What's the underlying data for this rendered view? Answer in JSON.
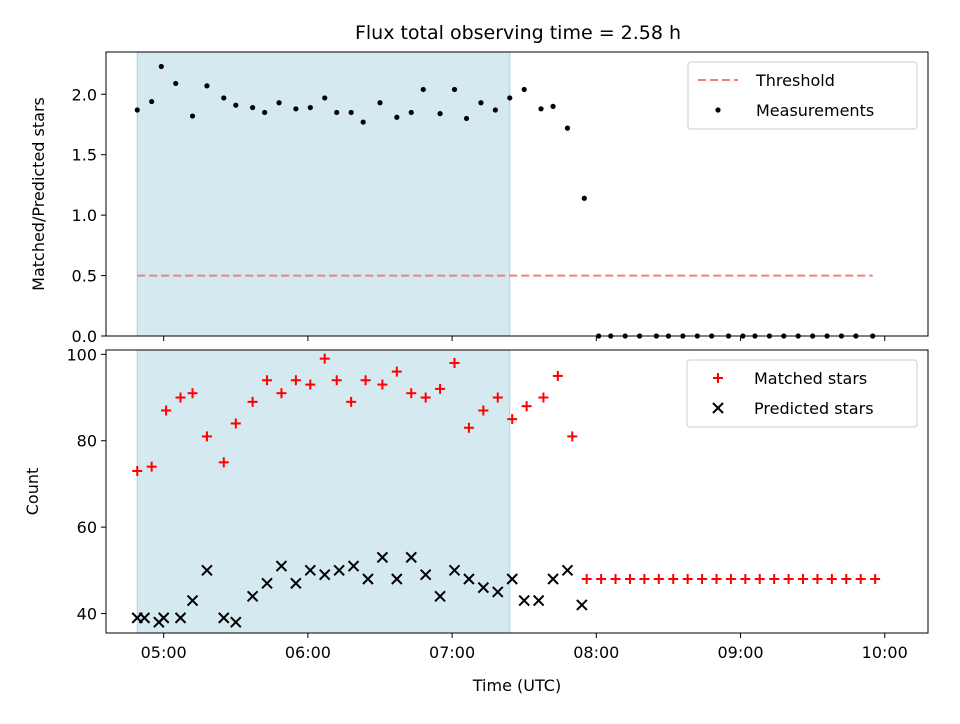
{
  "chart_data": [
    {
      "type": "scatter",
      "title": "Flux total observing time = 2.58 h",
      "xlabel": "",
      "ylabel": "Matched/Predicted stars",
      "xlim": [
        "04:36",
        "10:18"
      ],
      "ylim": [
        0,
        2.35
      ],
      "yticks": [
        0.0,
        0.5,
        1.0,
        1.5,
        2.0
      ],
      "ytick_labels": [
        "0.0",
        "0.5",
        "1.0",
        "1.5",
        "2.0"
      ],
      "shaded_region": {
        "x0": "04:49",
        "x1": "07:24",
        "color": "#d4eaf0"
      },
      "legend": {
        "position": "top-right",
        "entries": [
          "Threshold",
          "Measurements"
        ]
      },
      "series": [
        {
          "name": "Threshold",
          "style": "dashed-line",
          "color": "#f08080",
          "x": [
            "04:49",
            "09:55"
          ],
          "y": [
            0.5,
            0.5
          ]
        },
        {
          "name": "Measurements",
          "style": "dot",
          "color": "#000000",
          "x": [
            "04:49",
            "04:55",
            "04:59",
            "05:05",
            "05:12",
            "05:18",
            "05:25",
            "05:30",
            "05:37",
            "05:42",
            "05:48",
            "05:55",
            "06:01",
            "06:07",
            "06:12",
            "06:18",
            "06:23",
            "06:30",
            "06:37",
            "06:43",
            "06:48",
            "06:55",
            "07:01",
            "07:06",
            "07:12",
            "07:18",
            "07:24",
            "07:30",
            "07:37",
            "07:42",
            "07:48",
            "07:55",
            "08:01",
            "08:06",
            "08:12",
            "08:18",
            "08:25",
            "08:30",
            "08:36",
            "08:42",
            "08:48",
            "08:55",
            "09:01",
            "09:06",
            "09:12",
            "09:18",
            "09:24",
            "09:30",
            "09:36",
            "09:42",
            "09:48",
            "09:55"
          ],
          "y": [
            1.87,
            1.94,
            2.23,
            2.09,
            1.82,
            2.07,
            1.97,
            1.91,
            1.89,
            1.85,
            1.93,
            1.88,
            1.89,
            1.97,
            1.85,
            1.85,
            1.77,
            1.93,
            1.81,
            1.85,
            2.04,
            1.84,
            2.04,
            1.8,
            1.93,
            1.87,
            1.97,
            2.04,
            1.88,
            1.9,
            1.72,
            1.14,
            0,
            0,
            0,
            0,
            0,
            0,
            0,
            0,
            0,
            0,
            0,
            0,
            0,
            0,
            0,
            0,
            0,
            0,
            0,
            0
          ]
        }
      ]
    },
    {
      "type": "scatter",
      "title": "",
      "xlabel": "Time (UTC)",
      "ylabel": "Count",
      "xlim": [
        "04:36",
        "10:18"
      ],
      "ylim": [
        35.5,
        101
      ],
      "xticks": [
        "05:00",
        "06:00",
        "07:00",
        "08:00",
        "09:00",
        "10:00"
      ],
      "yticks": [
        40,
        60,
        80,
        100
      ],
      "ytick_labels": [
        "40",
        "60",
        "80",
        "100"
      ],
      "shaded_region": {
        "x0": "04:49",
        "x1": "07:24",
        "color": "#d4eaf0"
      },
      "legend": {
        "position": "top-right",
        "entries": [
          "Matched stars",
          "Predicted stars"
        ]
      },
      "series": [
        {
          "name": "Matched stars",
          "style": "plus",
          "color": "#ff0000",
          "x": [
            "04:49",
            "04:55",
            "05:01",
            "05:07",
            "05:12",
            "05:18",
            "05:25",
            "05:30",
            "05:37",
            "05:43",
            "05:49",
            "05:55",
            "06:01",
            "06:07",
            "06:12",
            "06:18",
            "06:24",
            "06:31",
            "06:37",
            "06:43",
            "06:49",
            "06:55",
            "07:01",
            "07:07",
            "07:13",
            "07:19",
            "07:25",
            "07:31",
            "07:38",
            "07:44",
            "07:50",
            "07:56",
            "08:02",
            "08:08",
            "08:14",
            "08:20",
            "08:26",
            "08:32",
            "08:38",
            "08:44",
            "08:50",
            "08:56",
            "09:02",
            "09:08",
            "09:14",
            "09:20",
            "09:26",
            "09:32",
            "09:38",
            "09:44",
            "09:50",
            "09:56"
          ],
          "y": [
            73,
            74,
            87,
            90,
            91,
            81,
            75,
            84,
            89,
            94,
            91,
            94,
            93,
            99,
            94,
            89,
            94,
            93,
            96,
            91,
            90,
            92,
            98,
            83,
            87,
            90,
            85,
            88,
            90,
            95,
            81,
            48,
            48,
            48,
            48,
            48,
            48,
            48,
            48,
            48,
            48,
            48,
            48,
            48,
            48,
            48,
            48,
            48,
            48,
            48,
            48,
            48
          ]
        },
        {
          "name": "Predicted stars",
          "style": "x",
          "color": "#000000",
          "x": [
            "04:49",
            "04:52",
            "04:58",
            "05:00",
            "05:07",
            "05:12",
            "05:18",
            "05:25",
            "05:30",
            "05:37",
            "05:43",
            "05:49",
            "05:55",
            "06:01",
            "06:07",
            "06:13",
            "06:19",
            "06:25",
            "06:31",
            "06:37",
            "06:43",
            "06:49",
            "06:55",
            "07:01",
            "07:07",
            "07:13",
            "07:19",
            "07:25",
            "07:30",
            "07:36",
            "07:42",
            "07:48",
            "07:54"
          ],
          "y": [
            39,
            39,
            38,
            39,
            39,
            43,
            50,
            39,
            38,
            44,
            47,
            51,
            47,
            50,
            49,
            50,
            51,
            48,
            53,
            48,
            53,
            49,
            44,
            50,
            48,
            46,
            45,
            48,
            43,
            43,
            48,
            50,
            42
          ]
        }
      ]
    }
  ]
}
